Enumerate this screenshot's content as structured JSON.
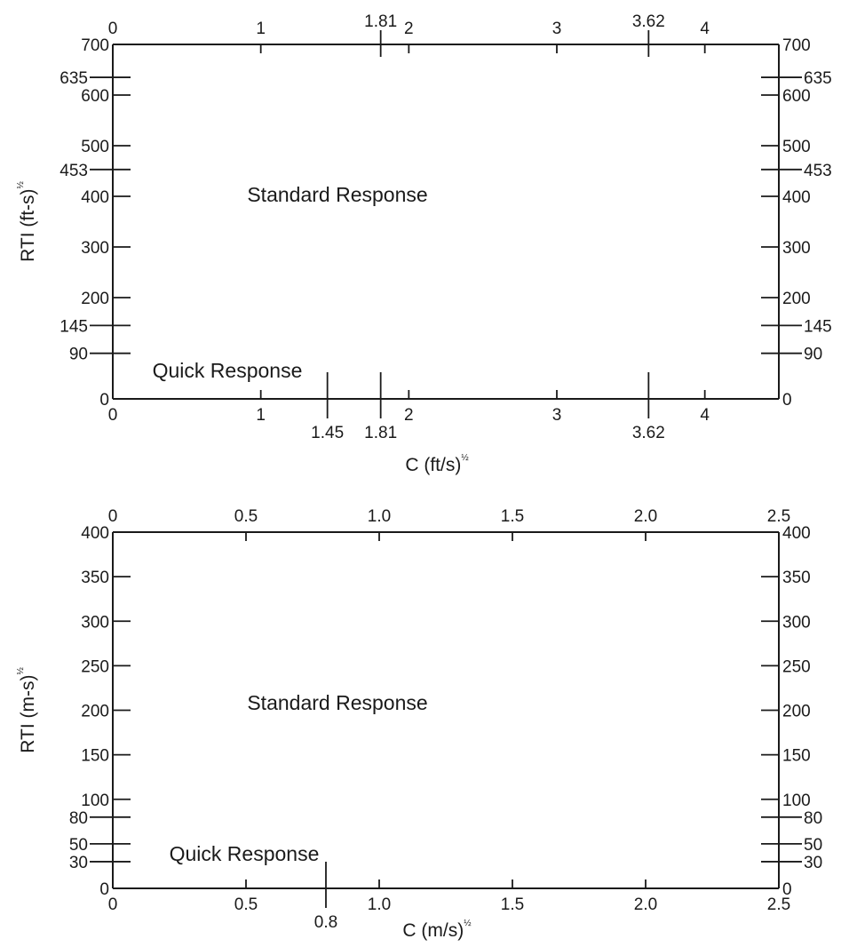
{
  "chart_data": [
    {
      "type": "line",
      "title": "",
      "xlabel": "C (ft/s)",
      "xlabel_exponent": "½",
      "ylabel": "RTI (ft-s)",
      "ylabel_exponent": "½",
      "xlim": [
        0,
        4.5
      ],
      "ylim": [
        0,
        700
      ],
      "x_ticks": [
        0,
        1,
        2,
        3,
        4
      ],
      "x_special_bottom": [
        1.45,
        1.81,
        3.62
      ],
      "x_special_top": [
        1.81,
        3.62
      ],
      "y_ticks": [
        0,
        200,
        300,
        400,
        500,
        600,
        700
      ],
      "y_special": [
        90,
        145,
        453,
        635
      ],
      "series": [
        {
          "name": "Standard Response",
          "x": [
            0,
            1.81,
            3.62,
            3.62,
            0
          ],
          "y": [
            635,
            635,
            453,
            145,
            145
          ]
        },
        {
          "name": "Quick Response",
          "x": [
            0,
            1.45,
            1.81,
            1.81
          ],
          "y": [
            90,
            90,
            50,
            0
          ]
        }
      ]
    },
    {
      "type": "line",
      "title": "",
      "xlabel": "C (m/s)",
      "xlabel_exponent": "½",
      "ylabel": "RTI (m-s)",
      "ylabel_exponent": "½",
      "xlim": [
        0,
        2.5
      ],
      "ylim": [
        0,
        400
      ],
      "x_ticks": [
        "0",
        "0.5",
        "1.0",
        "1.5",
        "2.0",
        "2.5"
      ],
      "x_special_bottom": [
        "0.8"
      ],
      "y_ticks": [
        0,
        100,
        150,
        200,
        250,
        300,
        350,
        400
      ],
      "y_special": [
        30,
        50,
        80
      ],
      "series": [
        {
          "name": "Standard Response",
          "x": [
            0,
            1.0,
            2.0,
            2.0,
            0
          ],
          "y": [
            350,
            350,
            250,
            80,
            80
          ]
        },
        {
          "name": "Quick Response",
          "x": [
            0,
            0.8,
            1.0,
            1.0
          ],
          "y": [
            50,
            50,
            30,
            0
          ]
        }
      ]
    }
  ]
}
